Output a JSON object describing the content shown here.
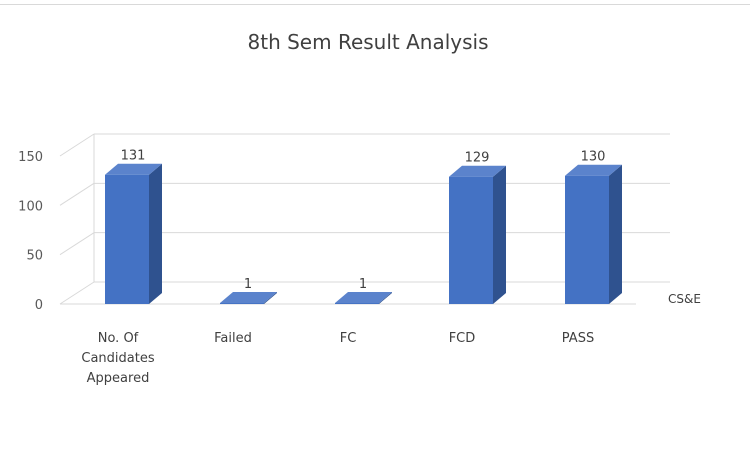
{
  "chart_data": {
    "type": "bar",
    "title": "8th Sem Result Analysis",
    "categories": [
      "No. Of Candidates Appeared",
      "Failed",
      "FC",
      "FCD",
      "PASS"
    ],
    "category_lines": [
      [
        "No. Of",
        "Candidates",
        "Appeared"
      ],
      [
        "Failed"
      ],
      [
        "FC"
      ],
      [
        "FCD"
      ],
      [
        "PASS"
      ]
    ],
    "series": [
      {
        "name": "CS&E",
        "values": [
          131,
          1,
          1,
          129,
          130
        ]
      }
    ],
    "ylim": [
      0,
      150
    ],
    "yticks": [
      0,
      50,
      100,
      150
    ],
    "grid": true,
    "style": "3d-column",
    "colors": {
      "bar_front": "#4472c4",
      "bar_side": "#2f528f",
      "bar_top": "#5b83cc",
      "grid": "#d9d9d9"
    }
  }
}
